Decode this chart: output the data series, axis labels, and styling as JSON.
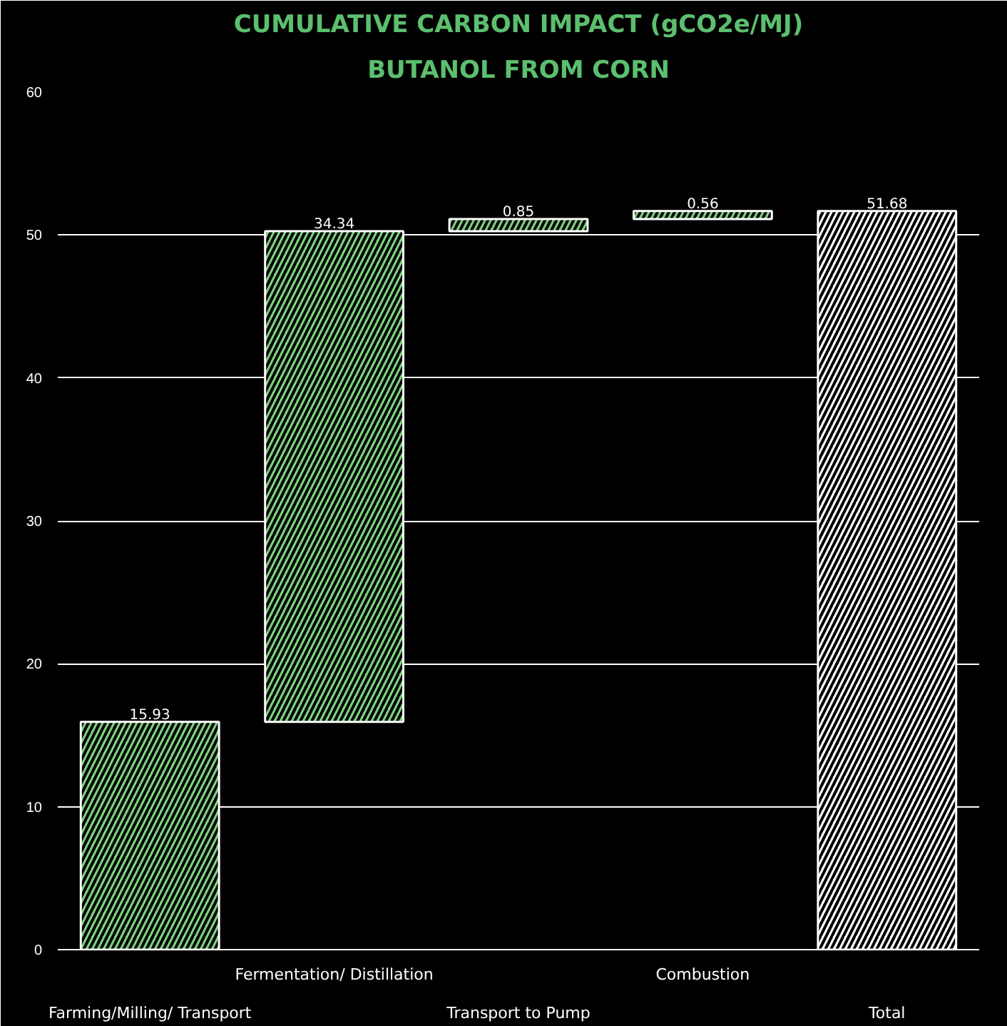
{
  "chart_data": {
    "type": "bar",
    "title": "CUMULATIVE CARBON IMPACT (gCO2e/MJ)",
    "subtitle": "BUTANOL FROM CORN",
    "categories": [
      "Farming/Milling/ Transport",
      "Fermentation/ Distillation",
      "Transport to Pump",
      "Combustion",
      "Total"
    ],
    "values": [
      15.93,
      34.34,
      0.85,
      0.56,
      51.68
    ],
    "base": [
      0,
      15.93,
      50.27,
      51.12,
      0
    ],
    "colors": [
      "#7fd17f",
      "#7fd17f",
      "#7fd17f",
      "#7fd17f",
      "#ffffff"
    ],
    "data_labels": true,
    "ylim": [
      0,
      60
    ],
    "yticks": [
      0,
      10,
      20,
      30,
      40,
      50,
      60
    ],
    "grid": "y"
  }
}
